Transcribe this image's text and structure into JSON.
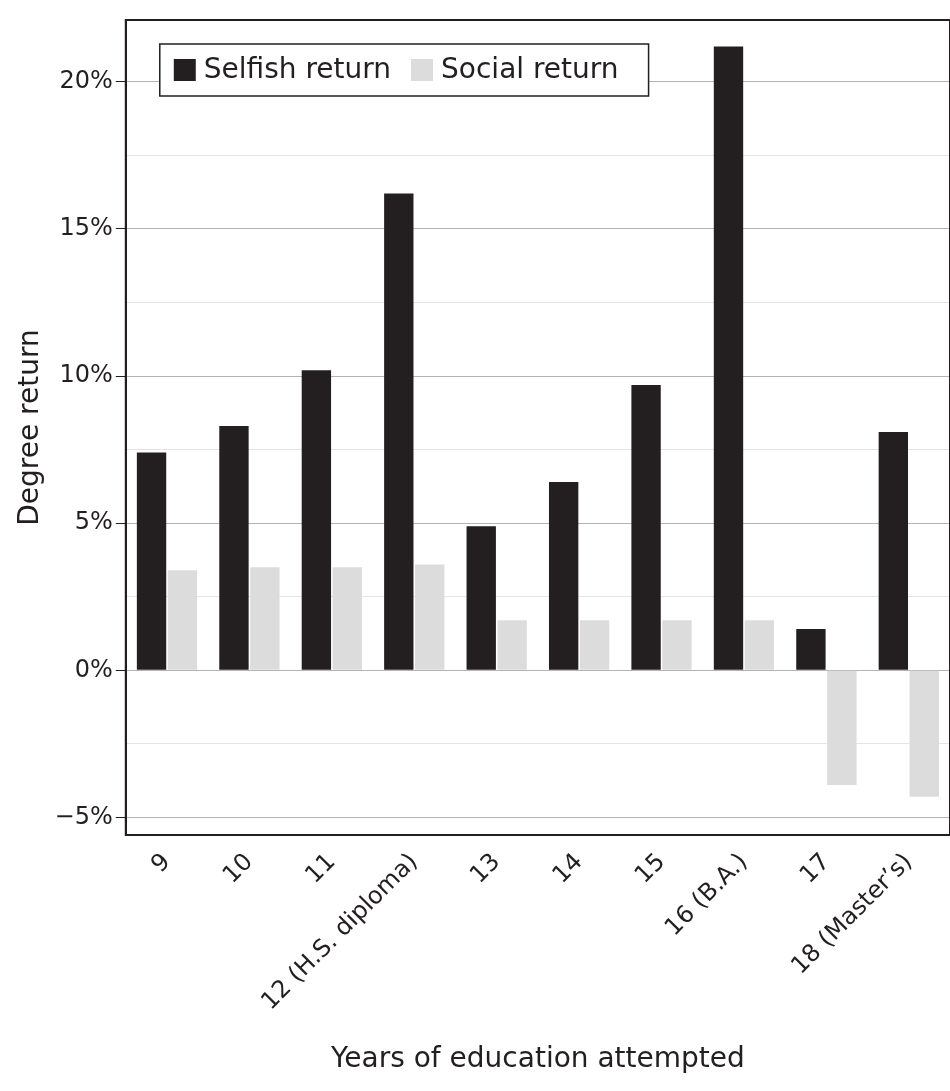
{
  "chart_data": {
    "type": "bar",
    "xlabel": "Years of education attempted",
    "ylabel": "Degree return",
    "categories": [
      "9",
      "10",
      "11",
      "12 (H.S. diploma)",
      "13",
      "14",
      "15",
      "16 (B.A.)",
      "17",
      "18 (Master’s)"
    ],
    "series": [
      {
        "name": "Selfish return",
        "color": "#231f20",
        "values": [
          7.4,
          8.3,
          10.2,
          16.2,
          4.9,
          6.4,
          9.7,
          21.2,
          1.4,
          8.1
        ]
      },
      {
        "name": "Social return",
        "color": "#dcdcdc",
        "values": [
          3.4,
          3.5,
          3.5,
          3.6,
          1.7,
          1.7,
          1.7,
          1.7,
          -3.9,
          -4.3
        ]
      }
    ],
    "ylim": [
      -5.6,
      22.1
    ],
    "yticks": [
      {
        "value": -5,
        "label": "−5%"
      },
      {
        "value": -2.5,
        "label": null
      },
      {
        "value": 0,
        "label": "0%"
      },
      {
        "value": 2.5,
        "label": null
      },
      {
        "value": 5,
        "label": "5%"
      },
      {
        "value": 7.5,
        "label": null
      },
      {
        "value": 10,
        "label": "10%"
      },
      {
        "value": 12.5,
        "label": null
      },
      {
        "value": 15,
        "label": "15%"
      },
      {
        "value": 17.5,
        "label": null
      },
      {
        "value": 20,
        "label": "20%"
      }
    ],
    "grid": "y",
    "legend": "top left"
  }
}
